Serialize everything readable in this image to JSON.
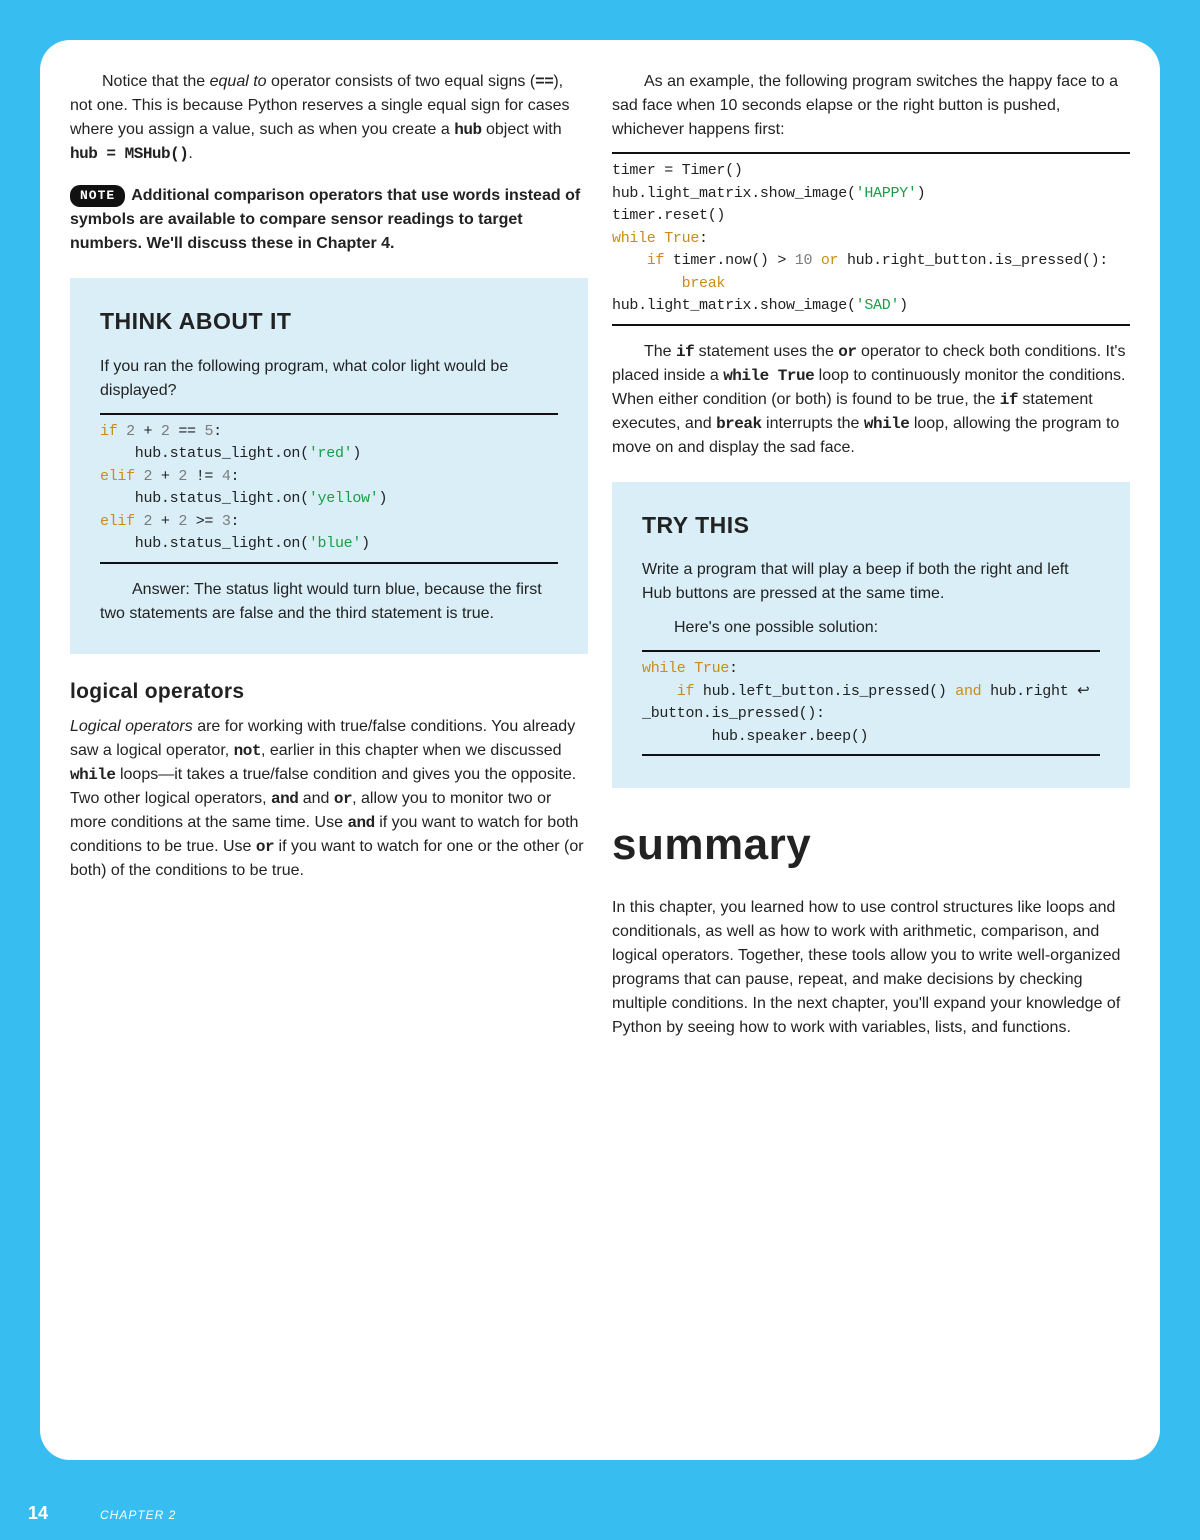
{
  "page": {
    "number": "14",
    "chapter_label": "CHAPTER 2"
  },
  "left": {
    "para1_a": "Notice that the ",
    "para1_b": "equal to",
    "para1_c": " operator consists of two equal signs (",
    "para1_d": "==",
    "para1_e": "), not one. This is because Python reserves a single equal sign for cases where you assign a value, such as when you create a ",
    "para1_f": "hub",
    "para1_g": " object with ",
    "para1_h": "hub = MSHub()",
    "para1_i": ".",
    "note_label": "NOTE",
    "note_text": "Additional comparison operators that use words instead of symbols are available to compare sensor readings to target numbers. We'll discuss these in Chapter 4.",
    "think": {
      "title": "THINK ABOUT IT",
      "prompt": "If you ran the following program, what color light would be displayed?",
      "code": {
        "l1a": "if ",
        "l1b": "2",
        "l1c": " + ",
        "l1d": "2",
        "l1e": " == ",
        "l1f": "5",
        "l1g": ":",
        "l2a": "    hub.status_light.on(",
        "l2b": "'red'",
        "l2c": ")",
        "l3a": "elif ",
        "l3b": "2",
        "l3c": " + ",
        "l3d": "2",
        "l3e": " != ",
        "l3f": "4",
        "l3g": ":",
        "l4a": "    hub.status_light.on(",
        "l4b": "'yellow'",
        "l4c": ")",
        "l5a": "elif ",
        "l5b": "2",
        "l5c": " + ",
        "l5d": "2",
        "l5e": " >= ",
        "l5f": "3",
        "l5g": ":",
        "l6a": "    hub.status_light.on(",
        "l6b": "'blue'",
        "l6c": ")"
      },
      "answer": "Answer: The status light would turn blue, because the first two statements are false and the third statement is true."
    },
    "logops": {
      "heading": "logical operators",
      "p_a": "Logical operators",
      "p_b": " are for working with true/false conditions. You already saw a logical operator, ",
      "p_c": "not",
      "p_d": ", earlier in this chapter when we discussed ",
      "p_e": "while",
      "p_f": " loops—it takes a true/false condition and gives you the opposite. Two other logical operators, ",
      "p_g": "and",
      "p_h": " and ",
      "p_i": "or",
      "p_j": ", allow you to monitor two or more conditions at the same time. Use ",
      "p_k": "and",
      "p_l": " if you want to watch for both conditions to be true. Use ",
      "p_m": "or",
      "p_n": " if you want to watch for one or the other (or both) of the conditions to be true."
    }
  },
  "right": {
    "para1": "As an example, the following program switches the happy face to a sad face when 10 seconds elapse or the right button is pushed, whichever happens first:",
    "code": {
      "l1": "timer = Timer()",
      "l2a": "hub.light_matrix.show_image(",
      "l2b": "'HAPPY'",
      "l2c": ")",
      "l3": "timer.reset()",
      "l4a": "while",
      "l4b": " ",
      "l4c": "True",
      "l4d": ":",
      "l5a": "    if",
      "l5b": " timer.now() > ",
      "l5c": "10",
      "l5d": " ",
      "l5e": "or",
      "l5f": " hub.right_button.is_pressed():",
      "l6a": "        ",
      "l6b": "break",
      "l7a": "hub.light_matrix.show_image(",
      "l7b": "'SAD'",
      "l7c": ")"
    },
    "para2_a": "The ",
    "para2_b": "if",
    "para2_c": " statement uses the ",
    "para2_d": "or",
    "para2_e": " operator to check both conditions. It's placed inside a ",
    "para2_f": "while True",
    "para2_g": " loop to continuously monitor the conditions. When either condition (or both) is found to be true, the ",
    "para2_h": "if",
    "para2_i": " statement executes, and ",
    "para2_j": "break",
    "para2_k": " interrupts the ",
    "para2_l": "while",
    "para2_m": " loop, allowing the program to move on and display the sad face.",
    "try": {
      "title": "TRY THIS",
      "p1": "Write a program that will play a beep if both the right and left Hub buttons are pressed at the same time.",
      "p2": "Here's one possible solution:",
      "code": {
        "l1a": "while",
        "l1b": " ",
        "l1c": "True",
        "l1d": ":",
        "l2a": "    if",
        "l2b": " hub.left_button.is_pressed() ",
        "l2c": "and",
        "l2d": " hub.right ↩",
        "l3": "_button.is_pressed():",
        "l4": "        hub.speaker.beep()"
      }
    },
    "summary": {
      "heading": "summary",
      "text": "In this chapter, you learned how to use control structures like loops and conditionals, as well as how to work with arithmetic, comparison, and logical operators. Together, these tools allow you to write well-organized programs that can pause, repeat, and make decisions by checking multiple conditions. In the next chapter, you'll expand your knowledge of Python by seeing how to work with variables, lists, and functions."
    }
  }
}
